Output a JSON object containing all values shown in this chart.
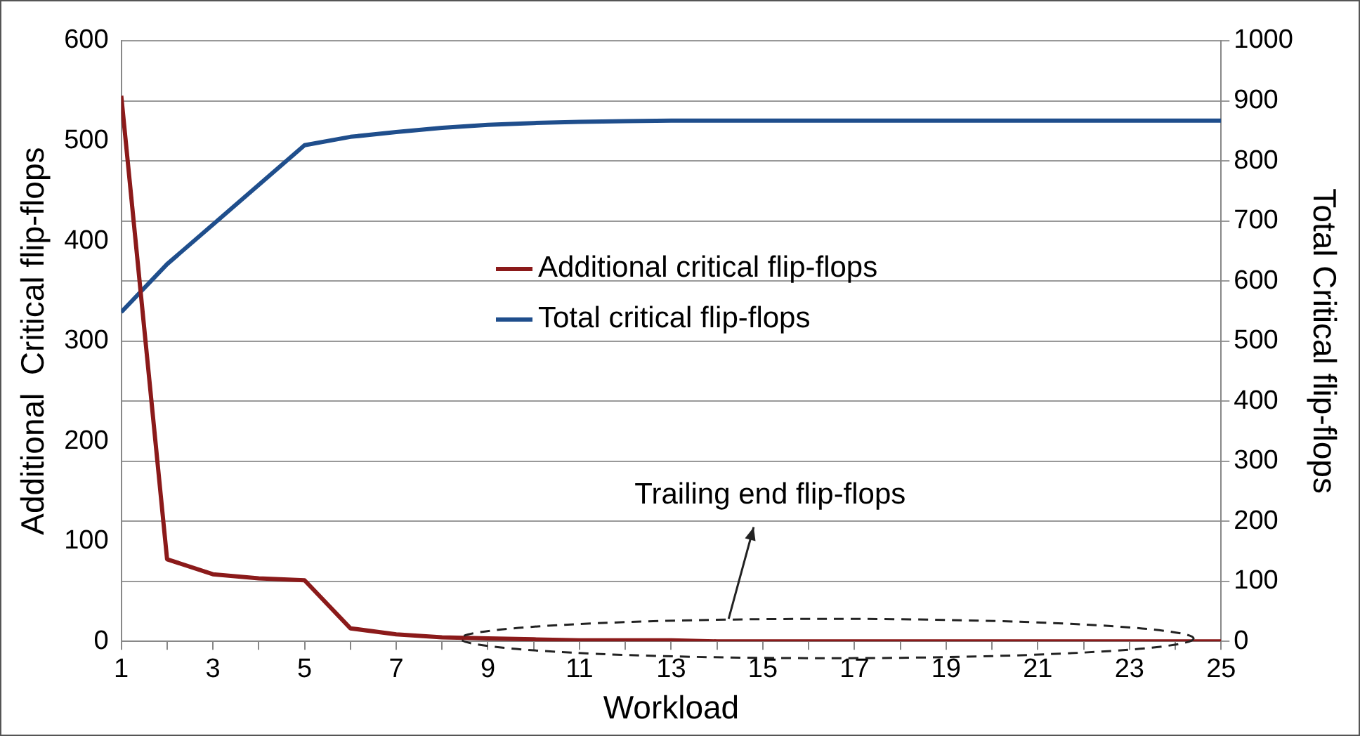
{
  "chart_data": {
    "type": "line",
    "xlabel": "Workload",
    "ylabel": "Additional  Critical flip-flops",
    "y2label": "Total Critical flip-flops",
    "x": [
      1,
      2,
      3,
      4,
      5,
      6,
      7,
      8,
      9,
      10,
      11,
      12,
      13,
      14,
      15,
      16,
      17,
      18,
      19,
      20,
      21,
      22,
      23,
      24,
      25
    ],
    "xlim": [
      1,
      25
    ],
    "xticks": [
      1,
      {
        "value": 2,
        "label": null
      },
      3,
      {
        "value": 4,
        "label": null
      },
      5,
      {
        "value": 6,
        "label": null
      },
      7,
      {
        "value": 8,
        "label": null
      },
      9,
      {
        "value": 10,
        "label": null
      },
      11,
      {
        "value": 12,
        "label": null
      },
      13,
      {
        "value": 14,
        "label": null
      },
      15,
      {
        "value": 16,
        "label": null
      },
      17,
      {
        "value": 18,
        "label": null
      },
      19,
      {
        "value": 20,
        "label": null
      },
      21,
      {
        "value": 22,
        "label": null
      },
      23,
      {
        "value": 24,
        "label": null
      },
      25
    ],
    "series": [
      {
        "name": "Additional critical flip-flops",
        "color": "#8b1a1a",
        "values": [
          545,
          82,
          67,
          63,
          61,
          13,
          7,
          4,
          3,
          2,
          1,
          1,
          1,
          0,
          0,
          0,
          0,
          0,
          0,
          0,
          0,
          0,
          0,
          0,
          0
        ]
      },
      {
        "name": "Total critical flip-flops",
        "color": "#1f4e8c",
        "axis": "y2",
        "values": [
          548,
          628,
          694,
          760,
          826,
          840,
          848,
          855,
          860,
          863,
          865,
          866,
          867,
          867,
          867,
          867,
          867,
          867,
          867,
          867,
          867,
          867,
          867,
          867,
          867
        ]
      }
    ],
    "ylim": [
      0,
      600
    ],
    "yticks": [
      0,
      100,
      200,
      300,
      400,
      500,
      600
    ],
    "y2lim": [
      0,
      1000
    ],
    "y2ticks": [
      0,
      100,
      200,
      300,
      400,
      500,
      600,
      700,
      800,
      900,
      1000
    ],
    "grid": "y2",
    "legend": "center",
    "marker": "none",
    "line_style": "solid",
    "annotations": [
      "Trailing end flip-flops"
    ]
  }
}
